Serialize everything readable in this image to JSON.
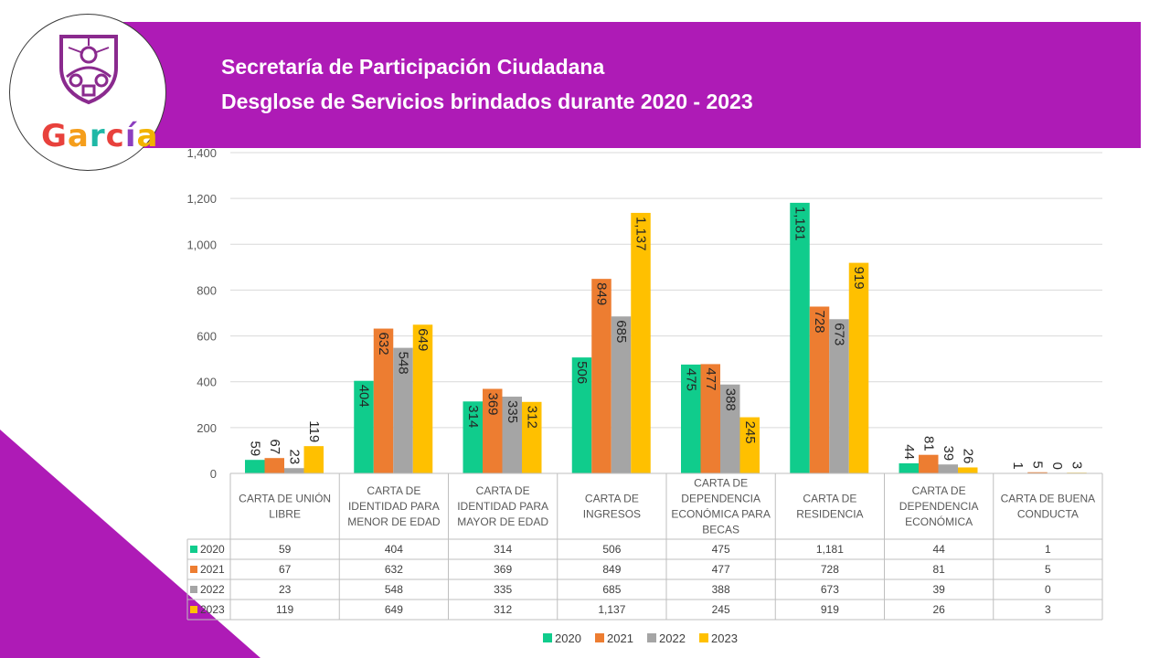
{
  "header": {
    "title_line1": "Secretaría de Participación Ciudadana",
    "title_line2": "Desglose de Servicios brindados durante 2020 - 2023"
  },
  "logo": {
    "text": "García",
    "letters": [
      "G",
      "a",
      "r",
      "c",
      "í",
      "a"
    ],
    "letter_colors": [
      "#e8413c",
      "#f59e1b",
      "#1fb8a6",
      "#e8413c",
      "#8c3fbf",
      "#f2b300"
    ]
  },
  "colors": {
    "header": "#ae1bb6",
    "triangle": "#ae1bb6"
  },
  "chart_data": {
    "type": "bar",
    "categories": [
      [
        "CARTA DE UNIÓN",
        "LIBRE"
      ],
      [
        "CARTA DE",
        "IDENTIDAD PARA",
        "MENOR DE EDAD"
      ],
      [
        "CARTA DE",
        "IDENTIDAD PARA",
        "MAYOR DE EDAD"
      ],
      [
        "CARTA DE",
        "INGRESOS"
      ],
      [
        "CARTA DE",
        "DEPENDENCIA",
        "ECONÓMICA PARA",
        "BECAS"
      ],
      [
        "CARTA DE",
        "RESIDENCIA"
      ],
      [
        "CARTA DE",
        "DEPENDENCIA",
        "ECONÓMICA"
      ],
      [
        "CARTA DE BUENA",
        "CONDUCTA"
      ]
    ],
    "series": [
      {
        "name": "2020",
        "color": "#10cc8c",
        "values": [
          59,
          404,
          314,
          506,
          475,
          1181,
          44,
          1
        ],
        "labels": [
          "59",
          "404",
          "314",
          "506",
          "475",
          "1,181",
          "44",
          "1"
        ]
      },
      {
        "name": "2021",
        "color": "#ed7d31",
        "values": [
          67,
          632,
          369,
          849,
          477,
          728,
          81,
          5
        ],
        "labels": [
          "67",
          "632",
          "369",
          "849",
          "477",
          "728",
          "81",
          "5"
        ]
      },
      {
        "name": "2022",
        "color": "#a5a5a5",
        "values": [
          23,
          548,
          335,
          685,
          388,
          673,
          39,
          0
        ],
        "labels": [
          "23",
          "548",
          "335",
          "685",
          "388",
          "673",
          "39",
          "0"
        ]
      },
      {
        "name": "2023",
        "color": "#ffc000",
        "values": [
          119,
          649,
          312,
          1137,
          245,
          919,
          26,
          3
        ],
        "labels": [
          "119",
          "649",
          "312",
          "1,137",
          "245",
          "919",
          "26",
          "3"
        ]
      }
    ],
    "ylim": [
      0,
      1400
    ],
    "yticks": [
      0,
      200,
      400,
      600,
      800,
      1000,
      1200,
      1400
    ],
    "ytick_labels": [
      "0",
      "200",
      "400",
      "600",
      "800",
      "1,000",
      "1,200",
      "1,400"
    ],
    "grid": true,
    "legend": "bottom",
    "data_table": true
  }
}
